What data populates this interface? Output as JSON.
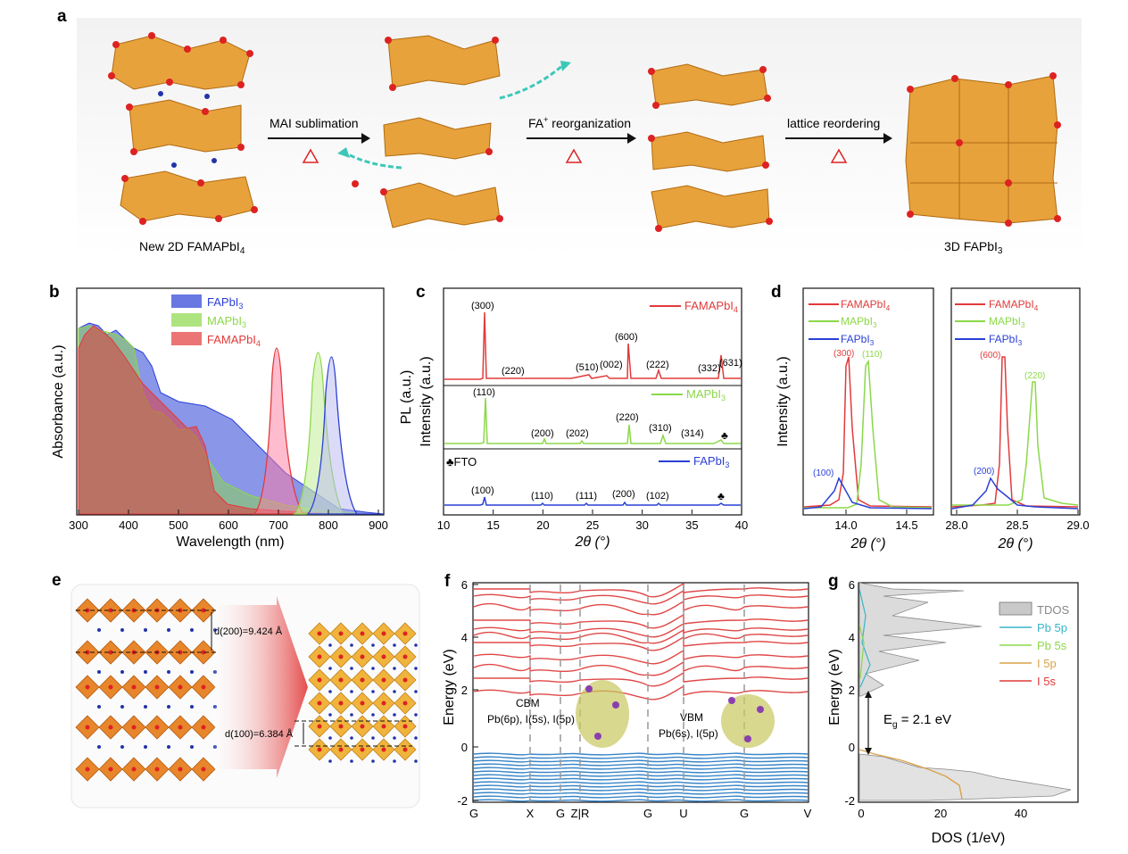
{
  "panel_a": {
    "letter": "a",
    "step1": "MAI sublimation",
    "step2_main": "FA",
    "step2_sup": "+",
    "step2_rest": " reorganization",
    "step3": "lattice reordering",
    "left_label_main": "New 2D FAMAPbI",
    "left_label_sub": "4",
    "right_label_main": "3D FAPbI",
    "right_label_sub": "3"
  },
  "panel_b": {
    "letter": "b",
    "xlabel": "Wavelength (nm)",
    "ylabel": "Absorbance (a.u.)",
    "pl_label": "PL (a.u.)",
    "xticks": [
      "300",
      "400",
      "500",
      "600",
      "700",
      "800",
      "900"
    ],
    "legend": [
      {
        "main": "FAPbI",
        "sub": "3",
        "color": "#2a3fd6"
      },
      {
        "main": "MAPbI",
        "sub": "3",
        "color": "#8cd84a"
      },
      {
        "main": "FAMAPbI",
        "sub": "4",
        "color": "#e23a3a"
      }
    ]
  },
  "panel_c": {
    "letter": "c",
    "ylabel": "Intensity (a.u.)",
    "xlabel": "2θ (°)",
    "xticks": [
      "10",
      "15",
      "20",
      "25",
      "30",
      "35",
      "40"
    ],
    "fto_label": "♣FTO",
    "series": [
      {
        "main": "FAMAPbI",
        "sub": "4",
        "color": "#e23a3a",
        "peaks": [
          "(300)",
          "(220)",
          "(510)",
          "(002)",
          "(600)",
          "(222)",
          "(332)",
          "(631)"
        ]
      },
      {
        "main": "MAPbI",
        "sub": "3",
        "color": "#8cd84a",
        "peaks": [
          "(110)",
          "(200)",
          "(202)",
          "(220)",
          "(310)",
          "(314)"
        ]
      },
      {
        "main": "FAPbI",
        "sub": "3",
        "color": "#2a3fd6",
        "peaks": [
          "(100)",
          "(110)",
          "(111)",
          "(200)",
          "(102)"
        ]
      }
    ]
  },
  "panel_d": {
    "letter": "d",
    "ylabel": "Intensity (a.u.)",
    "xlabel": "2θ (°)",
    "left_xticks": [
      "14.0",
      "14.5"
    ],
    "right_xticks": [
      "28.0",
      "28.5",
      "29.0"
    ],
    "legend": [
      {
        "main": "FAMAPbI",
        "sub": "4",
        "color": "#e23a3a"
      },
      {
        "main": "MAPbI",
        "sub": "3",
        "color": "#8cd84a"
      },
      {
        "main": "FAPbI",
        "sub": "3",
        "color": "#2a3fd6"
      }
    ],
    "left_peaks": [
      "(300)",
      "(110)",
      "(100)"
    ],
    "right_peaks": [
      "(600)",
      "(220)",
      "(200)"
    ]
  },
  "panel_e": {
    "letter": "e",
    "d200": "d(200)=9.424  Å",
    "d100": "d(100)=6.384  Å"
  },
  "panel_f": {
    "letter": "f",
    "ylabel": "Energy (eV)",
    "yticks": [
      "6",
      "4",
      "2",
      "0",
      "-2"
    ],
    "kpoints": [
      "G",
      "X",
      "G",
      "Z|R",
      "G",
      "U",
      "G",
      "V"
    ],
    "cbm_title": "CBM",
    "cbm_orbitals": "Pb(6p), I(5s), I(5p)",
    "vbm_title": "VBM",
    "vbm_orbitals": "Pb(6s), I(5p)"
  },
  "panel_g": {
    "letter": "g",
    "ylabel": "Energy (eV)",
    "xlabel": "DOS (1/eV)",
    "yticks": [
      "6",
      "4",
      "2",
      "0",
      "-2"
    ],
    "xticks": [
      "0",
      "20",
      "40"
    ],
    "gap_label": "E",
    "gap_sub": "g",
    "gap_value": " = 2.1 eV",
    "legend": [
      {
        "label": "TDOS",
        "color": "#bbbbbb"
      },
      {
        "label": "Pb 5p",
        "color": "#3ab5c8"
      },
      {
        "label": "Pb 5s",
        "color": "#8cd84a"
      },
      {
        "label": "I 5p",
        "color": "#d8a24a"
      },
      {
        "label": "I 5s",
        "color": "#e23a3a"
      }
    ]
  }
}
